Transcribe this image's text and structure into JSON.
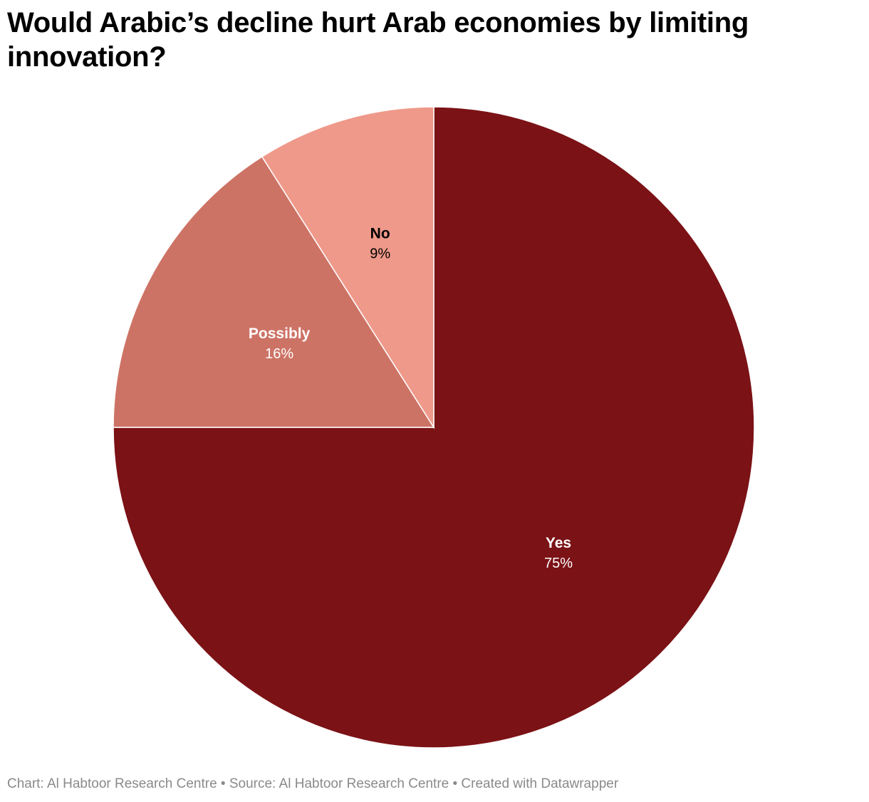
{
  "chart_data": {
    "type": "pie",
    "title": "Would Arabic’s decline hurt Arab economies by limiting innovation?",
    "slices": [
      {
        "label": "Yes",
        "value": 75,
        "value_label": "75%",
        "color": "#7b1216",
        "text_color": "#ffffff"
      },
      {
        "label": "Possibly",
        "value": 16,
        "value_label": "16%",
        "color": "#cd7365",
        "text_color": "#ffffff"
      },
      {
        "label": "No",
        "value": 9,
        "value_label": "9%",
        "color": "#ef998a",
        "text_color": "#000000"
      }
    ],
    "start": "12 o'clock, clockwise",
    "legend": "none (direct labels)"
  },
  "footer": {
    "text": "Chart: Al Habtoor Research Centre • Source: Al Habtoor Research Centre • Created with Datawrapper"
  }
}
